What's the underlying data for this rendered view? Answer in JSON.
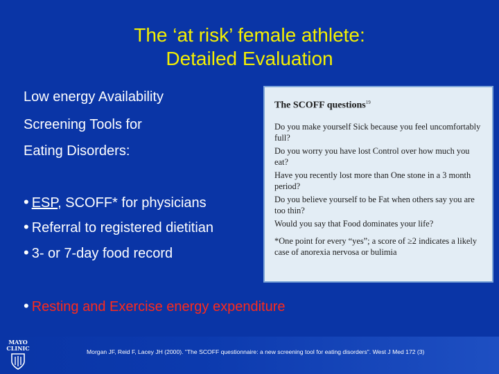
{
  "title": {
    "line1": "The ‘at risk’ female athlete:",
    "line2": "Detailed Evaluation"
  },
  "body": {
    "intro1": "Low energy Availability",
    "intro2": "Screening Tools for",
    "intro3": "Eating Disorders:",
    "bullet_char": "•",
    "bullets": [
      {
        "prefix": "ESP",
        "rest": ", SCOFF* for physicians"
      },
      {
        "text": "Referral to registered dietitian"
      },
      {
        "text": "3- or 7-day food record"
      }
    ],
    "resting_bullet": "Resting and Exercise energy expenditure",
    "colors": {
      "title": "#f5f000",
      "text": "#ffffff",
      "highlight": "#ff2a1a",
      "background": "#0a35a6"
    }
  },
  "scoff": {
    "title": "The SCOFF questions",
    "title_ref": "19",
    "questions": [
      "Do you make yourself Sick because you feel uncomfortably full?",
      "Do you worry you have lost Control over how much you eat?",
      "Have you recently lost more than One stone in a 3 month period?",
      "Do you believe yourself to be Fat when others say you are too thin?",
      "Would you say that Food dominates your life?"
    ],
    "note": "*One point for every “yes”; a score of ≥2 indicates a likely case of anorexia nervosa or bulimia"
  },
  "footer": {
    "logo_line1": "MAYO",
    "logo_line2": "CLINIC",
    "citation": "Morgan JF, Reid F, Lacey JH (2000). \"The SCOFF questionnaire: a new screening tool for eating disorders\". West J Med 172 (3)"
  }
}
